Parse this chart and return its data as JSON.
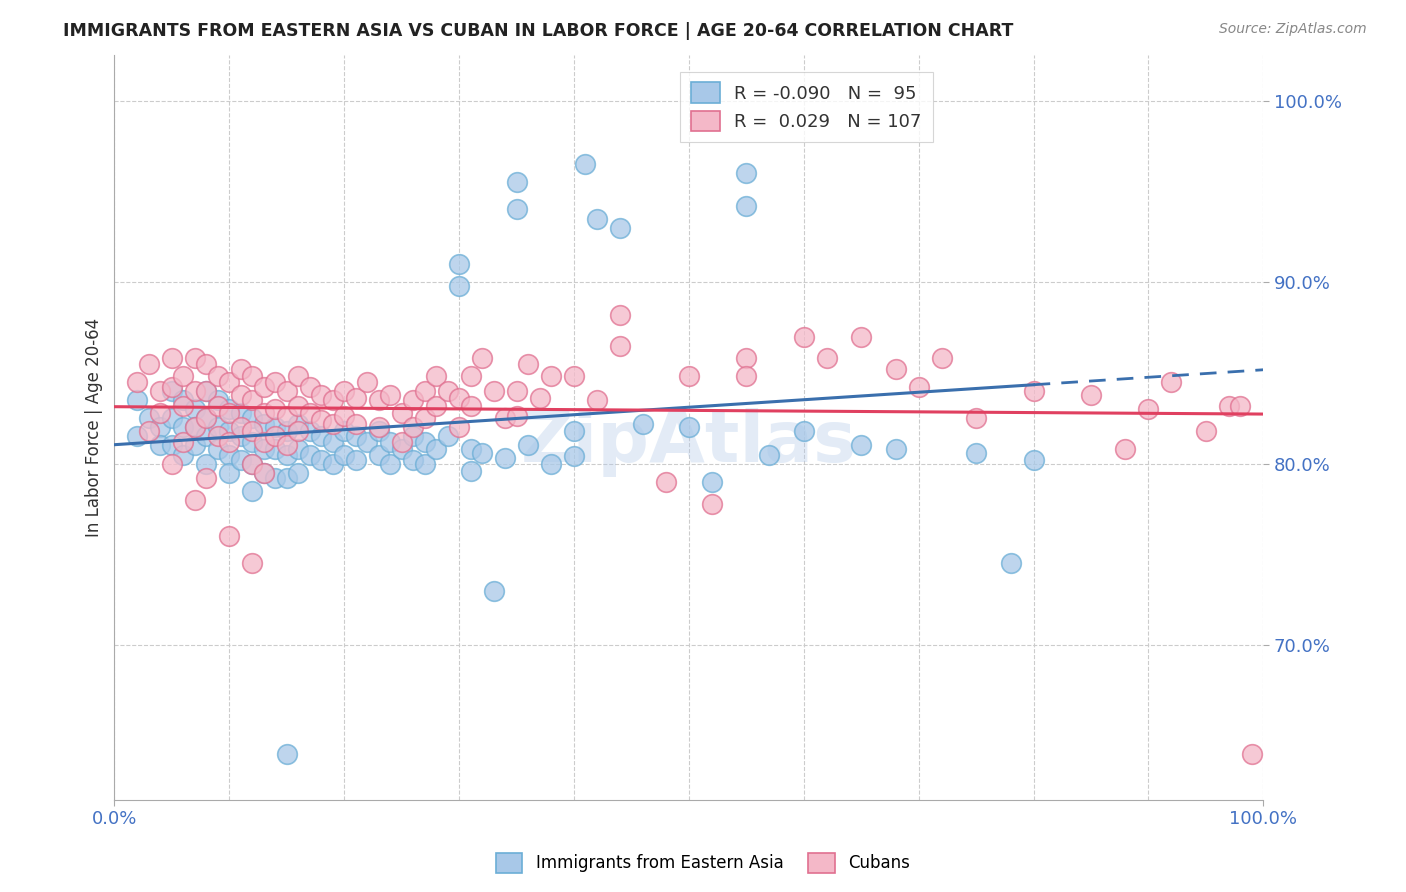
{
  "title": "IMMIGRANTS FROM EASTERN ASIA VS CUBAN IN LABOR FORCE | AGE 20-64 CORRELATION CHART",
  "source": "Source: ZipAtlas.com",
  "ylabel": "In Labor Force | Age 20-64",
  "xlim": [
    0.0,
    1.0
  ],
  "ylim": [
    0.615,
    1.025
  ],
  "yticks": [
    0.7,
    0.8,
    0.9,
    1.0
  ],
  "ytick_labels": [
    "70.0%",
    "80.0%",
    "90.0%",
    "100.0%"
  ],
  "xticks": [
    0.0,
    1.0
  ],
  "xtick_labels": [
    "0.0%",
    "100.0%"
  ],
  "legend1_r": "-0.090",
  "legend1_n": "95",
  "legend2_r": "0.029",
  "legend2_n": "107",
  "blue_face": "#a8c8e8",
  "blue_edge": "#6baed6",
  "pink_face": "#f4b8c8",
  "pink_edge": "#e07090",
  "line_blue": "#3a6fad",
  "line_pink": "#e04060",
  "blue_scatter": [
    [
      0.02,
      0.835
    ],
    [
      0.02,
      0.815
    ],
    [
      0.03,
      0.825
    ],
    [
      0.04,
      0.82
    ],
    [
      0.04,
      0.81
    ],
    [
      0.05,
      0.84
    ],
    [
      0.05,
      0.825
    ],
    [
      0.05,
      0.81
    ],
    [
      0.06,
      0.835
    ],
    [
      0.06,
      0.82
    ],
    [
      0.06,
      0.805
    ],
    [
      0.07,
      0.83
    ],
    [
      0.07,
      0.82
    ],
    [
      0.07,
      0.81
    ],
    [
      0.08,
      0.84
    ],
    [
      0.08,
      0.825
    ],
    [
      0.08,
      0.815
    ],
    [
      0.08,
      0.8
    ],
    [
      0.09,
      0.835
    ],
    [
      0.09,
      0.82
    ],
    [
      0.09,
      0.808
    ],
    [
      0.1,
      0.83
    ],
    [
      0.1,
      0.818
    ],
    [
      0.1,
      0.805
    ],
    [
      0.1,
      0.795
    ],
    [
      0.11,
      0.828
    ],
    [
      0.11,
      0.815
    ],
    [
      0.11,
      0.802
    ],
    [
      0.12,
      0.825
    ],
    [
      0.12,
      0.812
    ],
    [
      0.12,
      0.8
    ],
    [
      0.12,
      0.785
    ],
    [
      0.13,
      0.822
    ],
    [
      0.13,
      0.808
    ],
    [
      0.13,
      0.795
    ],
    [
      0.14,
      0.82
    ],
    [
      0.14,
      0.808
    ],
    [
      0.14,
      0.792
    ],
    [
      0.15,
      0.818
    ],
    [
      0.15,
      0.805
    ],
    [
      0.15,
      0.792
    ],
    [
      0.16,
      0.822
    ],
    [
      0.16,
      0.808
    ],
    [
      0.16,
      0.795
    ],
    [
      0.17,
      0.818
    ],
    [
      0.17,
      0.805
    ],
    [
      0.18,
      0.815
    ],
    [
      0.18,
      0.802
    ],
    [
      0.19,
      0.812
    ],
    [
      0.19,
      0.8
    ],
    [
      0.2,
      0.818
    ],
    [
      0.2,
      0.805
    ],
    [
      0.21,
      0.815
    ],
    [
      0.21,
      0.802
    ],
    [
      0.22,
      0.812
    ],
    [
      0.23,
      0.818
    ],
    [
      0.23,
      0.805
    ],
    [
      0.24,
      0.812
    ],
    [
      0.24,
      0.8
    ],
    [
      0.25,
      0.808
    ],
    [
      0.26,
      0.815
    ],
    [
      0.26,
      0.802
    ],
    [
      0.27,
      0.812
    ],
    [
      0.27,
      0.8
    ],
    [
      0.28,
      0.808
    ],
    [
      0.29,
      0.815
    ],
    [
      0.3,
      0.91
    ],
    [
      0.3,
      0.898
    ],
    [
      0.31,
      0.808
    ],
    [
      0.31,
      0.796
    ],
    [
      0.32,
      0.806
    ],
    [
      0.33,
      0.73
    ],
    [
      0.34,
      0.803
    ],
    [
      0.35,
      0.955
    ],
    [
      0.35,
      0.94
    ],
    [
      0.36,
      0.81
    ],
    [
      0.38,
      0.8
    ],
    [
      0.4,
      0.818
    ],
    [
      0.4,
      0.804
    ],
    [
      0.41,
      0.965
    ],
    [
      0.42,
      0.935
    ],
    [
      0.44,
      0.93
    ],
    [
      0.46,
      0.822
    ],
    [
      0.5,
      0.82
    ],
    [
      0.52,
      0.79
    ],
    [
      0.55,
      0.96
    ],
    [
      0.55,
      0.942
    ],
    [
      0.57,
      0.805
    ],
    [
      0.6,
      0.818
    ],
    [
      0.65,
      0.81
    ],
    [
      0.68,
      0.808
    ],
    [
      0.75,
      0.806
    ],
    [
      0.78,
      0.745
    ],
    [
      0.8,
      0.802
    ],
    [
      0.15,
      0.64
    ]
  ],
  "pink_scatter": [
    [
      0.02,
      0.845
    ],
    [
      0.03,
      0.855
    ],
    [
      0.03,
      0.818
    ],
    [
      0.04,
      0.84
    ],
    [
      0.04,
      0.828
    ],
    [
      0.05,
      0.858
    ],
    [
      0.05,
      0.842
    ],
    [
      0.05,
      0.8
    ],
    [
      0.06,
      0.848
    ],
    [
      0.06,
      0.832
    ],
    [
      0.06,
      0.812
    ],
    [
      0.07,
      0.858
    ],
    [
      0.07,
      0.84
    ],
    [
      0.07,
      0.82
    ],
    [
      0.07,
      0.78
    ],
    [
      0.08,
      0.855
    ],
    [
      0.08,
      0.84
    ],
    [
      0.08,
      0.825
    ],
    [
      0.08,
      0.792
    ],
    [
      0.09,
      0.848
    ],
    [
      0.09,
      0.832
    ],
    [
      0.09,
      0.815
    ],
    [
      0.1,
      0.845
    ],
    [
      0.1,
      0.828
    ],
    [
      0.1,
      0.812
    ],
    [
      0.1,
      0.76
    ],
    [
      0.11,
      0.852
    ],
    [
      0.11,
      0.838
    ],
    [
      0.11,
      0.82
    ],
    [
      0.12,
      0.848
    ],
    [
      0.12,
      0.835
    ],
    [
      0.12,
      0.818
    ],
    [
      0.12,
      0.8
    ],
    [
      0.12,
      0.745
    ],
    [
      0.13,
      0.842
    ],
    [
      0.13,
      0.828
    ],
    [
      0.13,
      0.812
    ],
    [
      0.13,
      0.795
    ],
    [
      0.14,
      0.845
    ],
    [
      0.14,
      0.83
    ],
    [
      0.14,
      0.815
    ],
    [
      0.15,
      0.84
    ],
    [
      0.15,
      0.826
    ],
    [
      0.15,
      0.81
    ],
    [
      0.16,
      0.848
    ],
    [
      0.16,
      0.832
    ],
    [
      0.16,
      0.818
    ],
    [
      0.17,
      0.842
    ],
    [
      0.17,
      0.828
    ],
    [
      0.18,
      0.838
    ],
    [
      0.18,
      0.824
    ],
    [
      0.19,
      0.835
    ],
    [
      0.19,
      0.822
    ],
    [
      0.2,
      0.84
    ],
    [
      0.2,
      0.826
    ],
    [
      0.21,
      0.836
    ],
    [
      0.21,
      0.822
    ],
    [
      0.22,
      0.845
    ],
    [
      0.23,
      0.835
    ],
    [
      0.23,
      0.82
    ],
    [
      0.24,
      0.838
    ],
    [
      0.25,
      0.828
    ],
    [
      0.25,
      0.812
    ],
    [
      0.26,
      0.835
    ],
    [
      0.26,
      0.82
    ],
    [
      0.27,
      0.84
    ],
    [
      0.27,
      0.825
    ],
    [
      0.28,
      0.848
    ],
    [
      0.28,
      0.832
    ],
    [
      0.29,
      0.84
    ],
    [
      0.3,
      0.836
    ],
    [
      0.3,
      0.82
    ],
    [
      0.31,
      0.848
    ],
    [
      0.31,
      0.832
    ],
    [
      0.32,
      0.858
    ],
    [
      0.33,
      0.84
    ],
    [
      0.34,
      0.825
    ],
    [
      0.35,
      0.84
    ],
    [
      0.35,
      0.826
    ],
    [
      0.36,
      0.855
    ],
    [
      0.37,
      0.836
    ],
    [
      0.38,
      0.848
    ],
    [
      0.4,
      0.848
    ],
    [
      0.42,
      0.835
    ],
    [
      0.44,
      0.882
    ],
    [
      0.44,
      0.865
    ],
    [
      0.48,
      0.79
    ],
    [
      0.5,
      0.848
    ],
    [
      0.52,
      0.778
    ],
    [
      0.55,
      0.858
    ],
    [
      0.55,
      0.848
    ],
    [
      0.6,
      0.87
    ],
    [
      0.62,
      0.858
    ],
    [
      0.65,
      0.87
    ],
    [
      0.68,
      0.852
    ],
    [
      0.7,
      0.842
    ],
    [
      0.72,
      0.858
    ],
    [
      0.75,
      0.825
    ],
    [
      0.8,
      0.84
    ],
    [
      0.85,
      0.838
    ],
    [
      0.88,
      0.808
    ],
    [
      0.9,
      0.83
    ],
    [
      0.92,
      0.845
    ],
    [
      0.95,
      0.818
    ],
    [
      0.97,
      0.832
    ],
    [
      0.98,
      0.832
    ],
    [
      0.99,
      0.64
    ]
  ],
  "blue_trendline_solid_end": 0.8,
  "watermark": "ZipAtlas",
  "background_color": "#ffffff",
  "grid_color": "#cccccc"
}
